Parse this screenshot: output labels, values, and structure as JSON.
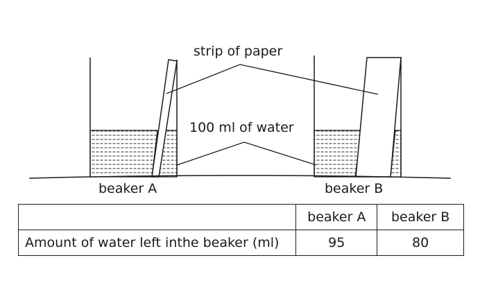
{
  "labels": {
    "strip": "strip of paper",
    "water": "100 ml of water",
    "beaker_a": "beaker A",
    "beaker_b": "beaker B"
  },
  "table": {
    "header": [
      "",
      "beaker A",
      "beaker B"
    ],
    "row": [
      "Amount of water left inthe beaker (ml)",
      "95",
      "80"
    ]
  }
}
